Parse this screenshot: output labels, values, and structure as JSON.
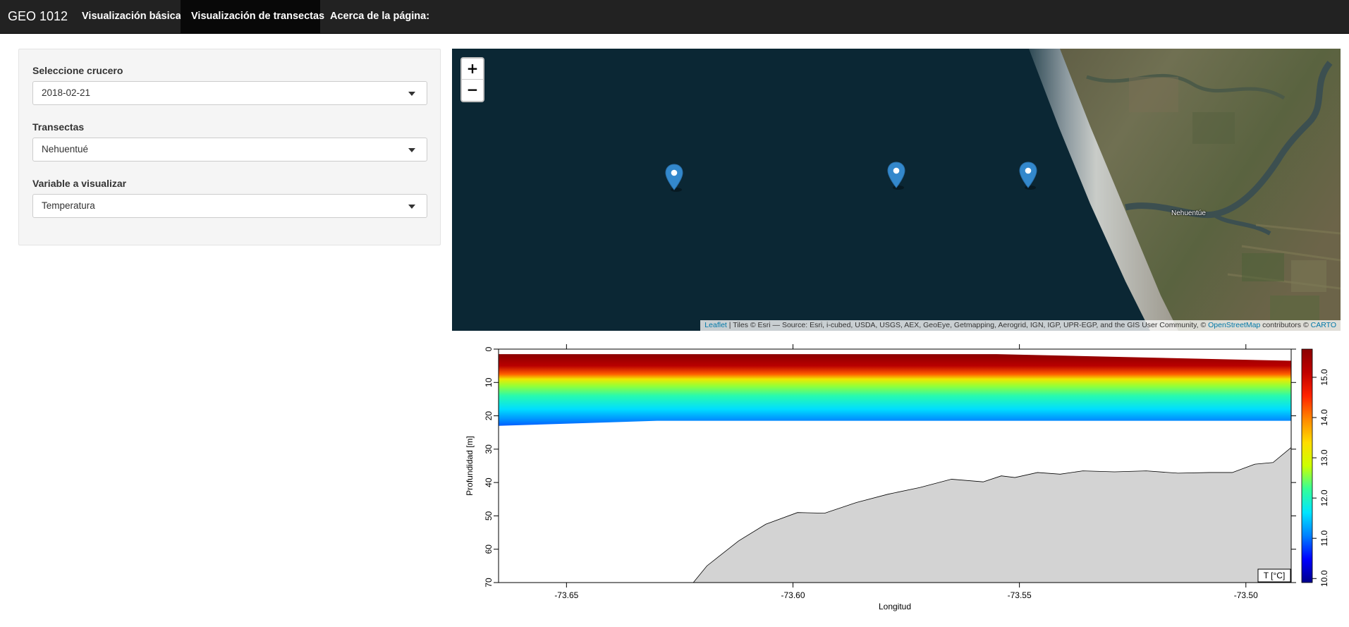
{
  "navbar": {
    "brand": "GEO 1012",
    "tabs": [
      {
        "label": "Visualización básica",
        "active": false
      },
      {
        "label": "Visualización de transectas",
        "active": true
      },
      {
        "label": "Acerca de la página:",
        "active": false
      }
    ]
  },
  "sidebar": {
    "cruise": {
      "label": "Seleccione crucero",
      "value": "2018-02-21"
    },
    "transect": {
      "label": "Transectas",
      "value": "Nehuentué"
    },
    "variable": {
      "label": "Variable a visualizar",
      "value": "Temperatura"
    }
  },
  "map": {
    "zoom_in": "+",
    "zoom_out": "−",
    "place_label": "Nehuentúe",
    "marker_color": "#3388cc",
    "markers": [
      {
        "name": "station-1"
      },
      {
        "name": "station-2"
      },
      {
        "name": "station-3"
      }
    ],
    "attribution": {
      "leaflet": "Leaflet",
      "tiles": " | Tiles © Esri — Source: Esri, i-cubed, USDA, USGS, AEX, GeoEye, Getmapping, Aerogrid, IGN, IGP, UPR-EGP, and the GIS User Community, © ",
      "osm": "OpenStreetMap",
      "contributors": " contributors © ",
      "carto": "CARTO"
    }
  },
  "chart_data": {
    "type": "heatmap",
    "xlabel": "Longitud",
    "ylabel": "Profundidad [m]",
    "xlim": [
      -73.665,
      -73.49
    ],
    "ylim": [
      70,
      0
    ],
    "x_ticks": [
      -73.65,
      -73.6,
      -73.55,
      -73.5
    ],
    "x_tick_labels": [
      "-73.65",
      "-73.60",
      "-73.55",
      "-73.50"
    ],
    "y_ticks": [
      0,
      10,
      20,
      30,
      40,
      50,
      60,
      70
    ],
    "y_tick_labels": [
      "0",
      "10",
      "20",
      "30",
      "40",
      "50",
      "60",
      "70"
    ],
    "colorbar": {
      "title": "T [°C]",
      "ticks": [
        10.0,
        11.0,
        12.0,
        13.0,
        14.0,
        15.0
      ],
      "tick_labels": [
        "10.0",
        "11.0",
        "12.0",
        "13.0",
        "14.0",
        "15.0"
      ],
      "range": [
        9.9,
        15.7
      ],
      "colors": [
        "#00008b",
        "#0000ff",
        "#0080ff",
        "#00e5ff",
        "#33ff99",
        "#ccff00",
        "#ffdd00",
        "#ff8800",
        "#ff2200",
        "#c00000",
        "#8b0000"
      ]
    },
    "data_top": [
      {
        "x": -73.665,
        "depth": 1.5
      },
      {
        "x": -73.555,
        "depth": 1.5
      },
      {
        "x": -73.49,
        "depth": 3.5
      }
    ],
    "data_bottom": [
      {
        "x": -73.665,
        "depth": 23
      },
      {
        "x": -73.63,
        "depth": 21.5
      },
      {
        "x": -73.6,
        "depth": 21.5
      },
      {
        "x": -73.49,
        "depth": 21.5
      }
    ],
    "temperature_profile": [
      {
        "depth": 1.5,
        "temp": 15.7
      },
      {
        "depth": 5,
        "temp": 15.2
      },
      {
        "depth": 7.5,
        "temp": 14.2
      },
      {
        "depth": 9,
        "temp": 13.2
      },
      {
        "depth": 11,
        "temp": 12.6
      },
      {
        "depth": 14,
        "temp": 12.1
      },
      {
        "depth": 18,
        "temp": 11.6
      },
      {
        "depth": 21.5,
        "temp": 11.1
      },
      {
        "depth": 23,
        "temp": 10.9
      }
    ],
    "bathymetry": [
      {
        "x": -73.622,
        "depth": 70
      },
      {
        "x": -73.619,
        "depth": 65
      },
      {
        "x": -73.612,
        "depth": 57.5
      },
      {
        "x": -73.606,
        "depth": 52.5
      },
      {
        "x": -73.599,
        "depth": 49
      },
      {
        "x": -73.593,
        "depth": 49.2
      },
      {
        "x": -73.586,
        "depth": 46
      },
      {
        "x": -73.579,
        "depth": 43.5
      },
      {
        "x": -73.572,
        "depth": 41.5
      },
      {
        "x": -73.565,
        "depth": 39
      },
      {
        "x": -73.558,
        "depth": 39.8
      },
      {
        "x": -73.554,
        "depth": 38
      },
      {
        "x": -73.551,
        "depth": 38.5
      },
      {
        "x": -73.546,
        "depth": 37
      },
      {
        "x": -73.541,
        "depth": 37.5
      },
      {
        "x": -73.536,
        "depth": 36.5
      },
      {
        "x": -73.529,
        "depth": 36.8
      },
      {
        "x": -73.522,
        "depth": 36.5
      },
      {
        "x": -73.515,
        "depth": 37.2
      },
      {
        "x": -73.508,
        "depth": 37
      },
      {
        "x": -73.503,
        "depth": 37
      },
      {
        "x": -73.498,
        "depth": 34.5
      },
      {
        "x": -73.494,
        "depth": 34
      },
      {
        "x": -73.49,
        "depth": 29.5
      }
    ],
    "bathymetry_color": "#d3d3d3"
  }
}
